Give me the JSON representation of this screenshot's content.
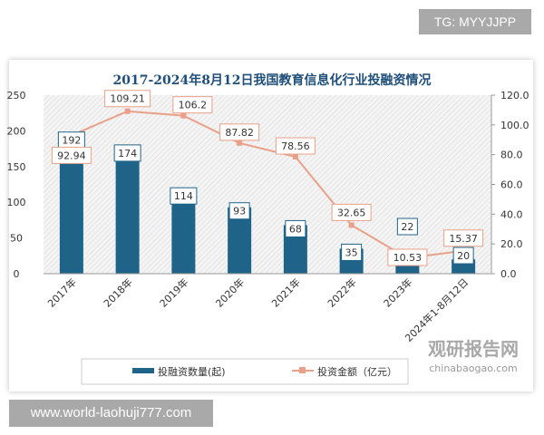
{
  "watermarks": {
    "tg": "TG: MYYJJPP",
    "url": "www.world-laohuji777.com",
    "logo_cn": "观研报告网",
    "logo_en": "chinabaogao.com"
  },
  "chart_data": {
    "type": "bar+line",
    "title": "2017-2024年8月12日我国教育信息化行业投融资情况",
    "categories": [
      "2017年",
      "2018年",
      "2019年",
      "2020年",
      "2021年",
      "2022年",
      "2023年",
      "2024年1-8月12日"
    ],
    "series": [
      {
        "name": "投融资数量(起)",
        "type": "bar",
        "axis": "left",
        "color": "#1f6488",
        "values": [
          192,
          174,
          114,
          93,
          68,
          35,
          22,
          20
        ]
      },
      {
        "name": "投资金额（亿元）",
        "type": "line",
        "axis": "right",
        "color": "#e8a088",
        "values": [
          92.94,
          109.21,
          106.2,
          87.82,
          78.56,
          32.65,
          10.53,
          15.37
        ]
      }
    ],
    "y_left": {
      "range": [
        0,
        250
      ],
      "ticks": [
        "0",
        "50",
        "100",
        "150",
        "200",
        "250"
      ]
    },
    "y_right": {
      "range": [
        0,
        120
      ],
      "ticks": [
        "0.0",
        "20.0",
        "40.0",
        "60.0",
        "80.0",
        "100.0",
        "120.0"
      ]
    },
    "legend_position": "bottom",
    "grid": false
  }
}
